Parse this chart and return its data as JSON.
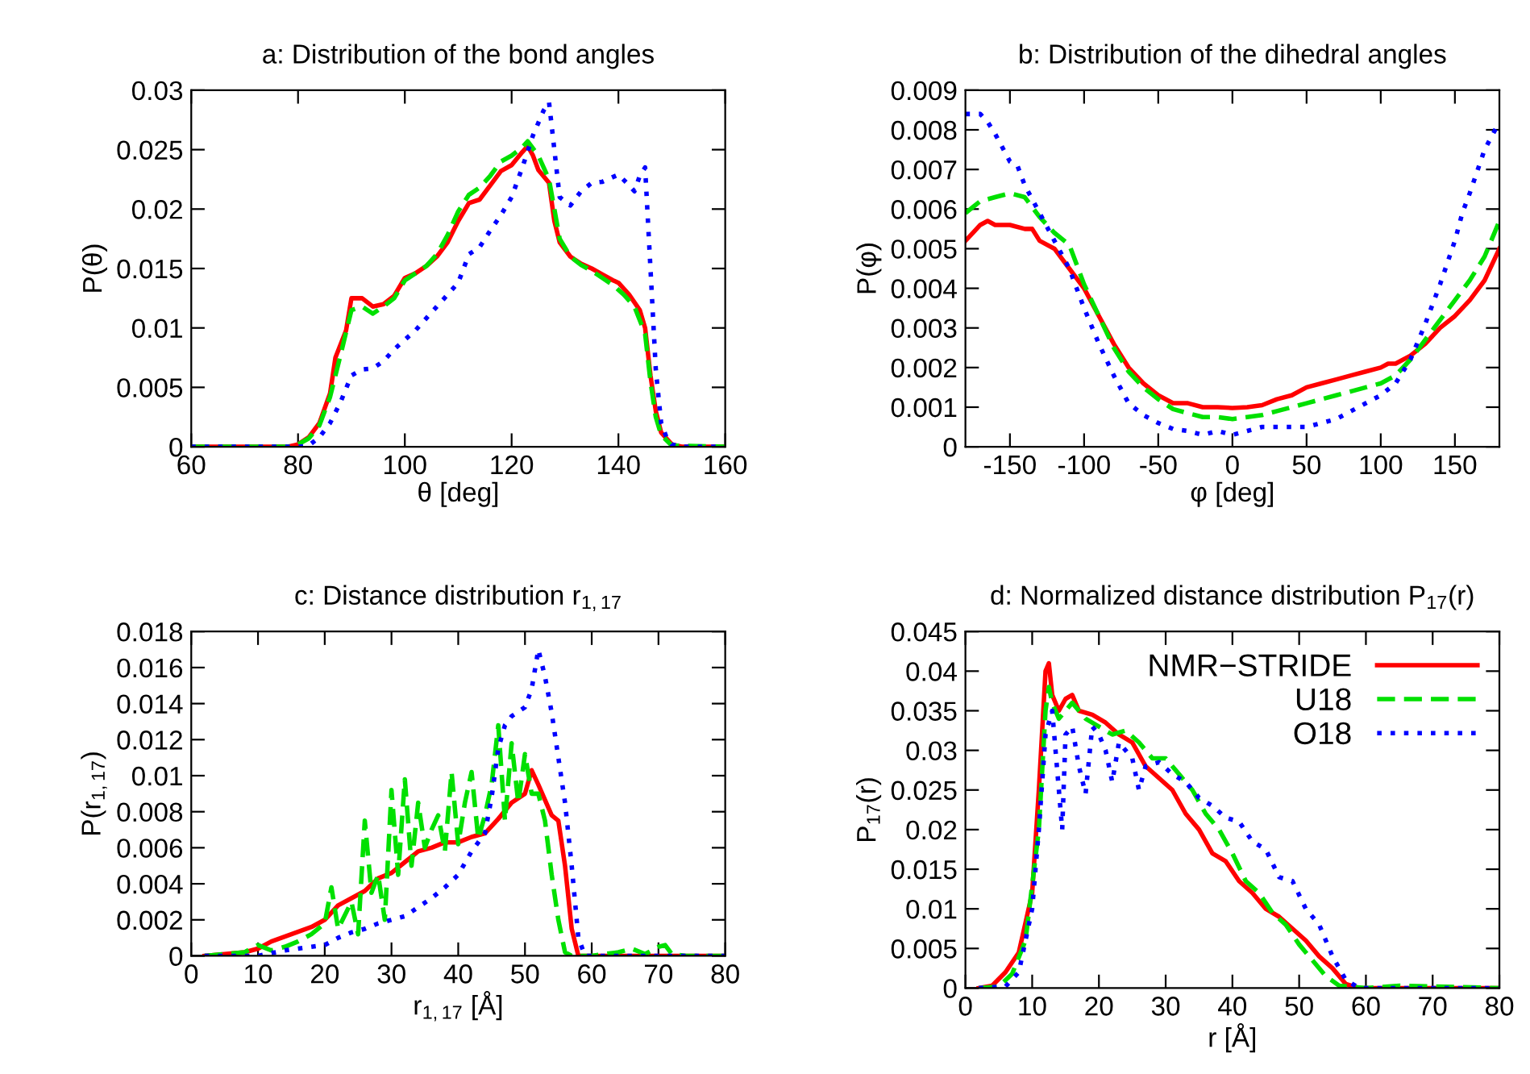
{
  "chart_data": [
    {
      "type": "line",
      "title": "a: Distribution of the bond angles",
      "xlabel": "θ [deg]",
      "ylabel": "P(θ)",
      "xlim": [
        60,
        160
      ],
      "xticks": [
        60,
        80,
        100,
        120,
        140,
        160
      ],
      "ylim": [
        0,
        0.03
      ],
      "yticks": [
        0,
        0.005,
        0.01,
        0.015,
        0.02,
        0.025,
        0.03
      ],
      "grid": false,
      "legend": false,
      "series": [
        {
          "color": "#ff0000",
          "line_style": "solid",
          "x": [
            60,
            70,
            78,
            80,
            82,
            84,
            86,
            87,
            89,
            90,
            92,
            94,
            96,
            98,
            100,
            102,
            104,
            106,
            108,
            110,
            112,
            114,
            116,
            118,
            120,
            122,
            123,
            124,
            125,
            127,
            128,
            129,
            131,
            133,
            135,
            137,
            139,
            140,
            142,
            144,
            145,
            146,
            147,
            148,
            150,
            152,
            160
          ],
          "values": [
            0,
            0,
            0,
            0.0002,
            0.0008,
            0.002,
            0.0045,
            0.0075,
            0.0098,
            0.0125,
            0.0125,
            0.0118,
            0.012,
            0.0127,
            0.0142,
            0.0146,
            0.0152,
            0.016,
            0.0172,
            0.019,
            0.0205,
            0.0208,
            0.022,
            0.0232,
            0.0237,
            0.0248,
            0.0253,
            0.0245,
            0.0233,
            0.0222,
            0.019,
            0.0172,
            0.016,
            0.0154,
            0.015,
            0.0145,
            0.014,
            0.0138,
            0.0128,
            0.0115,
            0.01,
            0.006,
            0.003,
            0.0012,
            0.0002,
            0,
            0
          ]
        },
        {
          "color": "#00e000",
          "line_style": "dashed",
          "x": [
            60,
            78,
            80,
            82,
            84,
            86,
            88,
            90,
            92,
            94,
            96,
            98,
            100,
            102,
            104,
            106,
            108,
            110,
            112,
            114,
            116,
            118,
            120,
            122,
            123,
            125,
            127,
            128,
            129,
            131,
            133,
            135,
            137,
            139,
            141,
            143,
            145,
            146,
            147,
            148,
            150,
            160
          ],
          "values": [
            0,
            0,
            0.0002,
            0.0007,
            0.0018,
            0.0042,
            0.0078,
            0.0115,
            0.0118,
            0.0112,
            0.0118,
            0.0125,
            0.014,
            0.0146,
            0.0152,
            0.0162,
            0.0178,
            0.0198,
            0.0212,
            0.0218,
            0.0228,
            0.024,
            0.0245,
            0.0252,
            0.0257,
            0.0245,
            0.0225,
            0.02,
            0.0175,
            0.016,
            0.0153,
            0.0148,
            0.0142,
            0.0136,
            0.0128,
            0.0118,
            0.0095,
            0.0055,
            0.0025,
            0.001,
            0.0001,
            0
          ]
        },
        {
          "color": "#0000ff",
          "line_style": "dotted",
          "x": [
            60,
            80,
            82,
            84,
            86,
            88,
            90,
            92,
            94,
            96,
            98,
            100,
            102,
            104,
            106,
            108,
            110,
            112,
            114,
            116,
            118,
            120,
            122,
            124,
            126,
            127,
            128,
            129,
            131,
            133,
            135,
            137,
            140,
            142,
            143,
            144,
            145,
            146,
            147,
            148,
            149,
            150,
            152,
            160
          ],
          "values": [
            0,
            0,
            0.0001,
            0.0008,
            0.002,
            0.0038,
            0.006,
            0.0065,
            0.0066,
            0.0072,
            0.0082,
            0.009,
            0.0098,
            0.0108,
            0.0118,
            0.0128,
            0.0138,
            0.0162,
            0.0168,
            0.0182,
            0.0195,
            0.021,
            0.0235,
            0.0262,
            0.0283,
            0.029,
            0.025,
            0.021,
            0.0203,
            0.0215,
            0.0222,
            0.0223,
            0.0229,
            0.022,
            0.0215,
            0.0228,
            0.0235,
            0.015,
            0.0065,
            0.002,
            0.0008,
            0.0002,
            0,
            0
          ]
        }
      ]
    },
    {
      "type": "line",
      "title": "b: Distribution of the dihedral angles",
      "xlabel": "φ [deg]",
      "ylabel": "P(φ)",
      "xlim": [
        -180,
        180
      ],
      "xticks": [
        -150,
        -100,
        -50,
        0,
        50,
        100,
        150
      ],
      "ylim": [
        0,
        0.009
      ],
      "yticks": [
        0,
        0.001,
        0.002,
        0.003,
        0.004,
        0.005,
        0.006,
        0.007,
        0.008,
        0.009
      ],
      "grid": false,
      "legend": false,
      "series": [
        {
          "color": "#ff0000",
          "line_style": "solid",
          "x": [
            -180,
            -175,
            -170,
            -165,
            -160,
            -150,
            -140,
            -135,
            -130,
            -120,
            -110,
            -100,
            -90,
            -80,
            -70,
            -60,
            -50,
            -40,
            -30,
            -20,
            -10,
            0,
            10,
            20,
            30,
            40,
            50,
            60,
            70,
            80,
            90,
            100,
            105,
            110,
            120,
            130,
            140,
            150,
            160,
            170,
            180
          ],
          "values": [
            0.0052,
            0.0054,
            0.0056,
            0.0057,
            0.0056,
            0.0056,
            0.0055,
            0.0055,
            0.0052,
            0.005,
            0.0045,
            0.004,
            0.0033,
            0.0026,
            0.002,
            0.0016,
            0.0013,
            0.0011,
            0.0011,
            0.001,
            0.001,
            0.00098,
            0.001,
            0.00105,
            0.0012,
            0.0013,
            0.0015,
            0.0016,
            0.0017,
            0.0018,
            0.0019,
            0.002,
            0.0021,
            0.0021,
            0.0023,
            0.0026,
            0.003,
            0.0033,
            0.0037,
            0.0042,
            0.005
          ]
        },
        {
          "color": "#00e000",
          "line_style": "dashed",
          "x": [
            -180,
            -170,
            -160,
            -150,
            -140,
            -130,
            -120,
            -110,
            -100,
            -90,
            -80,
            -70,
            -60,
            -50,
            -40,
            -30,
            -20,
            -10,
            0,
            10,
            20,
            30,
            40,
            50,
            60,
            70,
            80,
            90,
            100,
            110,
            120,
            130,
            140,
            150,
            160,
            170,
            180
          ],
          "values": [
            0.0059,
            0.0062,
            0.0063,
            0.0064,
            0.0063,
            0.0058,
            0.0054,
            0.0051,
            0.0041,
            0.0033,
            0.0025,
            0.0019,
            0.0015,
            0.0012,
            0.00095,
            0.00085,
            0.00075,
            0.00075,
            0.0007,
            0.00075,
            0.0008,
            0.0009,
            0.001,
            0.0011,
            0.0012,
            0.0013,
            0.0014,
            0.0015,
            0.0016,
            0.0018,
            0.0022,
            0.0027,
            0.0032,
            0.0037,
            0.0042,
            0.0048,
            0.0057
          ]
        },
        {
          "color": "#0000ff",
          "line_style": "dotted",
          "x": [
            -180,
            -170,
            -165,
            -160,
            -150,
            -145,
            -140,
            -130,
            -120,
            -110,
            -100,
            -90,
            -80,
            -70,
            -60,
            -50,
            -40,
            -30,
            -20,
            -10,
            0,
            10,
            20,
            30,
            40,
            50,
            60,
            70,
            80,
            90,
            100,
            110,
            120,
            130,
            140,
            150,
            155,
            160,
            170,
            180
          ],
          "values": [
            0.0084,
            0.0084,
            0.0082,
            0.0079,
            0.0072,
            0.0071,
            0.0066,
            0.0059,
            0.0052,
            0.0045,
            0.0035,
            0.0026,
            0.0018,
            0.0011,
            0.0008,
            0.0006,
            0.00045,
            0.0004,
            0.0003,
            0.0004,
            0.0003,
            0.0004,
            0.0005,
            0.0005,
            0.0005,
            0.0005,
            0.0006,
            0.0007,
            0.0009,
            0.0011,
            0.0013,
            0.0016,
            0.0022,
            0.0031,
            0.0041,
            0.0052,
            0.0059,
            0.0064,
            0.0075,
            0.0082
          ]
        }
      ]
    },
    {
      "type": "line",
      "title": "c: Distance distribution r$_{1,17}$",
      "xlabel": "r$_{1,17}$ [Å]",
      "ylabel": "P(r$_{1,17}$)",
      "xlim": [
        0,
        80
      ],
      "xticks": [
        0,
        10,
        20,
        30,
        40,
        50,
        60,
        70,
        80
      ],
      "ylim": [
        0,
        0.018
      ],
      "yticks": [
        0,
        0.002,
        0.004,
        0.006,
        0.008,
        0.01,
        0.012,
        0.014,
        0.016,
        0.018
      ],
      "grid": false,
      "legend": false,
      "series": [
        {
          "color": "#ff0000",
          "line_style": "solid",
          "x": [
            2,
            5,
            8,
            10,
            12,
            15,
            18,
            20,
            22,
            24,
            26,
            28,
            30,
            32,
            34,
            36,
            38,
            40,
            42,
            44,
            46,
            48,
            50,
            51,
            52,
            54,
            55,
            56,
            57,
            58,
            60,
            80
          ],
          "values": [
            0,
            0.0001,
            0.0002,
            0.0004,
            0.0008,
            0.0012,
            0.0016,
            0.002,
            0.0028,
            0.0032,
            0.0036,
            0.0043,
            0.0046,
            0.0052,
            0.0058,
            0.006,
            0.0063,
            0.0063,
            0.0066,
            0.0068,
            0.0076,
            0.0085,
            0.009,
            0.0103,
            0.0095,
            0.0078,
            0.0075,
            0.005,
            0.0015,
            0,
            0,
            0
          ]
        },
        {
          "color": "#00e000",
          "line_style": "dashed",
          "x": [
            2,
            8,
            10,
            12,
            14,
            16,
            18,
            20,
            21,
            22,
            24,
            25,
            26,
            27,
            28,
            29,
            30,
            31,
            32,
            33,
            34,
            35,
            36,
            37,
            38,
            39,
            40,
            41,
            42,
            43,
            44,
            45,
            46,
            47,
            48,
            49,
            50,
            51,
            52,
            53,
            54,
            55,
            56,
            57,
            60,
            64,
            66,
            68,
            70,
            71,
            72,
            74,
            80
          ],
          "values": [
            0,
            0.0002,
            0.0006,
            0.0003,
            0.0005,
            0.0008,
            0.0012,
            0.0018,
            0.0038,
            0.0015,
            0.003,
            0.0012,
            0.0075,
            0.0035,
            0.0045,
            0.002,
            0.0092,
            0.0045,
            0.0098,
            0.005,
            0.0085,
            0.006,
            0.007,
            0.0078,
            0.0058,
            0.0102,
            0.0062,
            0.0085,
            0.0102,
            0.0065,
            0.0078,
            0.0095,
            0.0128,
            0.0075,
            0.0118,
            0.0085,
            0.0112,
            0.009,
            0.009,
            0.0075,
            0.0045,
            0.002,
            0.0002,
            0,
            0,
            0.0002,
            0.0004,
            0.0001,
            0.0005,
            0.0006,
            0.0001,
            0,
            0
          ]
        },
        {
          "color": "#0000ff",
          "line_style": "dotted",
          "x": [
            2,
            10,
            14,
            18,
            20,
            22,
            24,
            26,
            28,
            30,
            32,
            34,
            36,
            38,
            40,
            42,
            44,
            45,
            46,
            47,
            48,
            50,
            51,
            52,
            53,
            54,
            55,
            56,
            57,
            58,
            59,
            80
          ],
          "values": [
            0,
            0,
            0.0003,
            0.0005,
            0.0006,
            0.001,
            0.0013,
            0.0015,
            0.0018,
            0.002,
            0.0022,
            0.0027,
            0.0032,
            0.0038,
            0.0045,
            0.0058,
            0.0068,
            0.0088,
            0.0115,
            0.0128,
            0.0133,
            0.0138,
            0.0148,
            0.017,
            0.0155,
            0.0135,
            0.011,
            0.0085,
            0.005,
            0.001,
            0,
            0
          ]
        }
      ]
    },
    {
      "type": "line",
      "title": "d: Normalized distance distribution P$_{17}$(r)",
      "xlabel": "r [Å]",
      "ylabel": "P$_{17}$(r)",
      "xlim": [
        0,
        80
      ],
      "xticks": [
        0,
        10,
        20,
        30,
        40,
        50,
        60,
        70,
        80
      ],
      "ylim": [
        0,
        0.045
      ],
      "yticks": [
        0,
        0.005,
        0.01,
        0.015,
        0.02,
        0.025,
        0.03,
        0.035,
        0.04,
        0.045
      ],
      "grid": false,
      "legend": "top right",
      "series": [
        {
          "name": "NMR−STRIDE",
          "color": "#ff0000",
          "line_style": "solid",
          "x": [
            2,
            4,
            6,
            8,
            10,
            11,
            12,
            12.5,
            13,
            14,
            15,
            16,
            17,
            19,
            21,
            23,
            25,
            27,
            29,
            31,
            33,
            35,
            37,
            39,
            41,
            43,
            45,
            47,
            49,
            51,
            53,
            55,
            57,
            59,
            80
          ],
          "values": [
            0,
            0.0003,
            0.002,
            0.0045,
            0.012,
            0.025,
            0.04,
            0.041,
            0.037,
            0.035,
            0.0365,
            0.037,
            0.035,
            0.0345,
            0.0335,
            0.032,
            0.031,
            0.028,
            0.0265,
            0.025,
            0.022,
            0.02,
            0.017,
            0.016,
            0.0135,
            0.012,
            0.01,
            0.009,
            0.0075,
            0.006,
            0.004,
            0.0025,
            0.0005,
            0,
            0
          ]
        },
        {
          "name": "U18",
          "color": "#00e000",
          "line_style": "dashed",
          "x": [
            2,
            5,
            7,
            9,
            11,
            12,
            12.5,
            13,
            14,
            16,
            18,
            20,
            22,
            24,
            26,
            28,
            30,
            32,
            34,
            36,
            38,
            40,
            42,
            44,
            46,
            48,
            50,
            52,
            54,
            56,
            60,
            65,
            70,
            80
          ],
          "values": [
            0,
            0.0002,
            0.0018,
            0.006,
            0.02,
            0.035,
            0.038,
            0.036,
            0.034,
            0.036,
            0.034,
            0.033,
            0.032,
            0.0325,
            0.031,
            0.029,
            0.029,
            0.027,
            0.025,
            0.022,
            0.02,
            0.017,
            0.0135,
            0.012,
            0.0095,
            0.008,
            0.0055,
            0.0035,
            0.0015,
            0.0003,
            0,
            0.0003,
            0.0002,
            0
          ]
        },
        {
          "name": "O18",
          "color": "#0000ff",
          "line_style": "dotted",
          "x": [
            2,
            6,
            8,
            10,
            11,
            12,
            13,
            14,
            14.5,
            15,
            16,
            17,
            18,
            19,
            20,
            21,
            22,
            23,
            25,
            26,
            27,
            29,
            31,
            33,
            35,
            37,
            39,
            41,
            43,
            45,
            47,
            49,
            51,
            53,
            55,
            57,
            59,
            80
          ],
          "values": [
            0,
            0.0002,
            0.002,
            0.01,
            0.02,
            0.032,
            0.035,
            0.025,
            0.02,
            0.032,
            0.033,
            0.028,
            0.0245,
            0.033,
            0.032,
            0.03,
            0.026,
            0.031,
            0.029,
            0.025,
            0.028,
            0.0285,
            0.027,
            0.026,
            0.024,
            0.023,
            0.0215,
            0.021,
            0.0185,
            0.0175,
            0.014,
            0.0135,
            0.01,
            0.008,
            0.004,
            0.001,
            0,
            0
          ]
        }
      ]
    }
  ]
}
